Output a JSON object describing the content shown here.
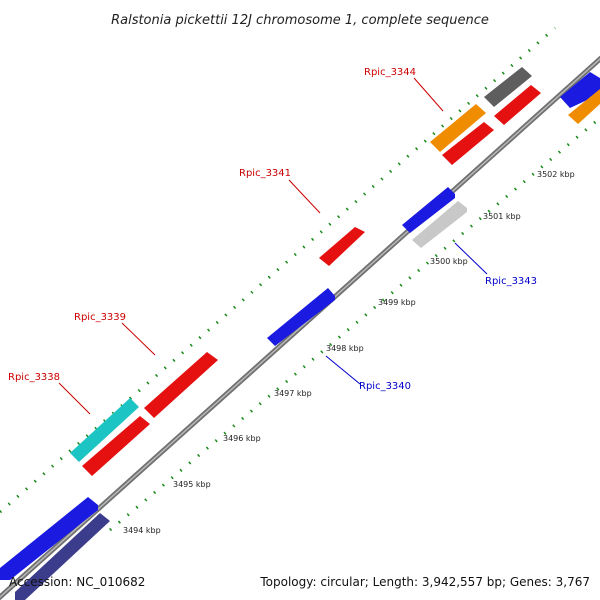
{
  "title": "Ralstonia pickettii 12J chromosome 1, complete sequence",
  "accession": "Accession: NC_010682",
  "topology": "Topology: circular; Length: 3,942,557 bp; Genes: 3,767",
  "colors": {
    "backbone": "#808080",
    "tick": "#1a8a1a",
    "forward_label": "#cc0000",
    "reverse_label": "#0000cc"
  },
  "ticks": [
    {
      "kbp": 3494,
      "label": "3494 kbp"
    },
    {
      "kbp": 3495,
      "label": "3495 kbp"
    },
    {
      "kbp": 3496,
      "label": "3496 kbp"
    },
    {
      "kbp": 3497,
      "label": "3497 kbp"
    },
    {
      "kbp": 3498,
      "label": "3498 kbp"
    },
    {
      "kbp": 3499,
      "label": "3499 kbp"
    },
    {
      "kbp": 3500,
      "label": "3500 kbp"
    },
    {
      "kbp": 3501,
      "label": "3501 kbp"
    },
    {
      "kbp": 3502,
      "label": "3502 kbp"
    }
  ],
  "gene_labels": [
    {
      "text": "Rpic_3338",
      "strand": "forward"
    },
    {
      "text": "Rpic_3339",
      "strand": "forward"
    },
    {
      "text": "Rpic_3341",
      "strand": "forward"
    },
    {
      "text": "Rpic_3344",
      "strand": "forward"
    },
    {
      "text": "Rpic_3340",
      "strand": "reverse"
    },
    {
      "text": "Rpic_3343",
      "strand": "reverse"
    }
  ]
}
